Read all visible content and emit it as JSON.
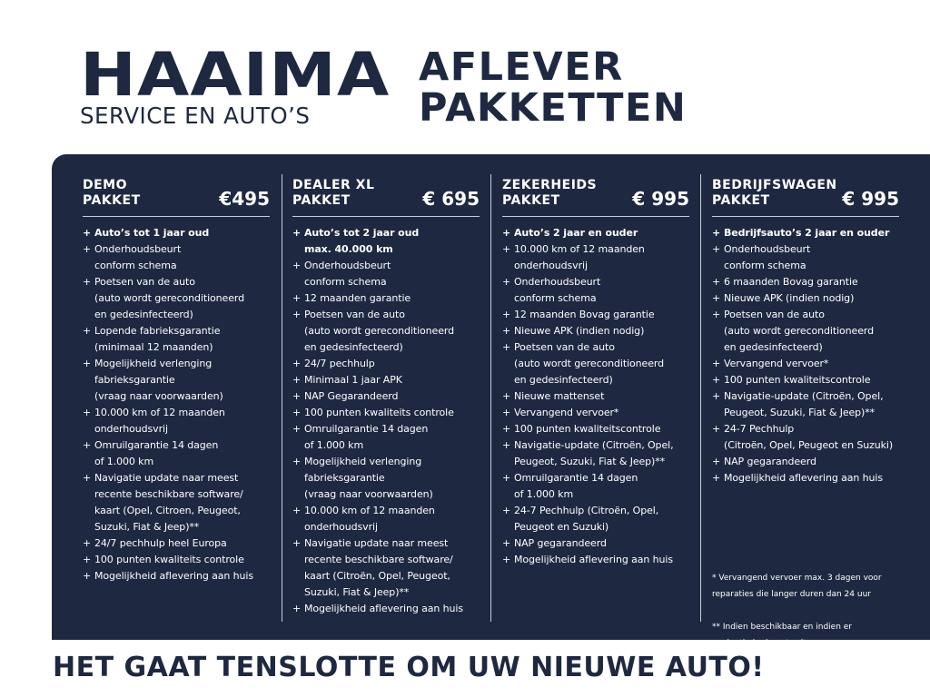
{
  "logo": {
    "main": "HAAIMA",
    "sub": "SERVICE EN AUTO’S"
  },
  "title": {
    "line1": "AFLEVER",
    "line2": "PAKKETTEN"
  },
  "colors": {
    "navy": "#1e2840",
    "text_on_navy": "#ffffff"
  },
  "packages": [
    {
      "name": "DEMO\nPAKKET",
      "price": "€495",
      "items": [
        "Auto’s tot 1 jaar oud",
        "Onderhoudsbeurt\nconform schema",
        "Poetsen van de auto\n(auto wordt gereconditioneerd\nen gedesinfecteerd)",
        "Lopende fabrieksgarantie\n(minimaal 12 maanden)",
        "Mogelijkheid verlenging\nfabrieksgarantie\n(vraag naar voorwaarden)",
        "10.000 km of 12 maanden\nonderhoudsvrij",
        "Omruilgarantie 14 dagen\nof 1.000 km",
        "Navigatie update naar meest\nrecente beschikbare software/\nkaart (Opel, Citroen,  Peugeot,\nSuzuki, Fiat & Jeep)**",
        "24/7 pechhulp heel Europa",
        "100 punten kwaliteits controle",
        "Mogelijkheid aflevering aan huis"
      ]
    },
    {
      "name": "DEALER XL\nPAKKET",
      "price": "€ 695",
      "items": [
        "Auto’s tot 2 jaar oud\nmax. 40.000 km",
        "Onderhoudsbeurt\nconform schema",
        "12 maanden garantie",
        "Poetsen van de auto\n(auto wordt gereconditioneerd\nen gedesinfecteerd)",
        "24/7 pechhulp",
        "Minimaal 1 jaar APK",
        "NAP Gegarandeerd",
        "100 punten kwaliteits controle",
        "Omruilgarantie 14 dagen\nof 1.000 km",
        "Mogelijkheid verlenging\nfabrieksgarantie\n(vraag naar voorwaarden)",
        "10.000 km of 12 maanden\nonderhoudsvrij",
        "Navigatie update naar meest\nrecente beschikbare software/\nkaart (Citroën, Opel, Peugeot,\nSuzuki, Fiat & Jeep)**",
        "Mogelijkheid aflevering aan huis"
      ]
    },
    {
      "name": "ZEKERHEIDS\nPAKKET",
      "price": "€ 995",
      "items": [
        "Auto’s 2 jaar en ouder",
        "10.000 km of 12 maanden\nonderhoudsvrij",
        "Onderhoudsbeurt\nconform schema",
        "12 maanden Bovag garantie",
        "Nieuwe APK (indien nodig)",
        "Poetsen van de auto\n(auto wordt gereconditioneerd\nen gedesinfecteerd)",
        "Nieuwe mattenset",
        "Vervangend vervoer*",
        "100 punten kwaliteitscontrole",
        "Navigatie-update (Citroën, Opel,\nPeugeot, Suzuki, Fiat & Jeep)**",
        "Omruilgarantie 14 dagen\nof 1.000 km",
        "24-7 Pechhulp (Citroën, Opel,\nPeugeot en Suzuki)",
        "NAP gegarandeerd",
        "Mogelijkheid aflevering aan huis"
      ]
    },
    {
      "name": "BEDRIJFSWAGEN\nPAKKET",
      "price": "€ 995",
      "items": [
        "Bedrijfsauto’s 2 jaar en ouder",
        "Onderhoudsbeurt\nconform schema",
        "6 maanden Bovag garantie",
        "Nieuwe APK (indien nodig)",
        "Poetsen van de auto\n(auto wordt gereconditioneerd\nen gedesinfecteerd)",
        "Vervangend vervoer*",
        "100 punten kwaliteitscontrole",
        "Navigatie-update (Citroën, Opel,\nPeugeot, Suzuki, Fiat & Jeep)**",
        "24-7 Pechhulp\n(Citroën, Opel, Peugeot en Suzuki)",
        "NAP gegarandeerd",
        "Mogelijkheid aflevering aan huis"
      ]
    }
  ],
  "footnotes": {
    "note1": "* Vervangend vervoer max. 3 dagen voor\n   reparaties die langer duren dan 24 uur",
    "note2": "** Indien beschikbaar en indien er\n     navigatie in de auto zit."
  },
  "tagline": "HET GAAT TENSLOTTE OM UW NIEUWE AUTO!"
}
